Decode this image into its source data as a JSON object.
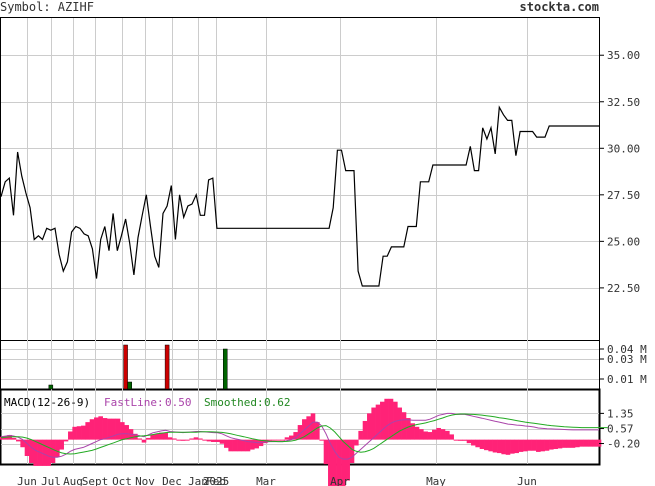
{
  "header": {
    "symbol_text": "Symbol: AZIHF",
    "brand": "stockta.com"
  },
  "chart_data": [
    {
      "type": "line",
      "name": "price",
      "ylim": [
        19.7,
        37.0
      ],
      "y_ticks": [
        "35.00",
        "32.50",
        "30.00",
        "27.50",
        "25.00",
        "22.50"
      ],
      "y_tick_values": [
        35.0,
        32.5,
        30.0,
        27.5,
        25.0,
        22.5
      ],
      "x_labels": [
        "Jun",
        "Jul",
        "Aug",
        "Sept",
        "Oct",
        "Nov",
        "Dec",
        "Jan",
        "Feb",
        "2025",
        "Mar",
        "Apr",
        "May",
        "Jun"
      ],
      "values": [
        27.4,
        28.2,
        28.4,
        26.4,
        29.8,
        28.5,
        27.6,
        26.8,
        25.1,
        25.3,
        25.1,
        25.7,
        25.6,
        25.7,
        24.3,
        23.4,
        23.9,
        25.5,
        25.8,
        25.7,
        25.4,
        25.3,
        24.6,
        23.0,
        25.1,
        25.8,
        24.5,
        26.5,
        24.5,
        25.3,
        26.2,
        24.9,
        23.2,
        25.2,
        26.4,
        27.5,
        25.8,
        24.2,
        23.6,
        26.5,
        26.9,
        28.0,
        25.1,
        27.5,
        26.3,
        26.9,
        27.0,
        27.5,
        26.4,
        26.4,
        28.3,
        28.4,
        25.7,
        25.7,
        25.7,
        25.7,
        25.7,
        25.7,
        25.7,
        25.7,
        25.7,
        25.7,
        25.7,
        25.7,
        25.7,
        25.7,
        25.7,
        25.7,
        25.7,
        25.7,
        25.7,
        25.7,
        25.7,
        25.7,
        25.7,
        25.7,
        25.7,
        25.7,
        25.7,
        25.7,
        26.8,
        29.9,
        29.9,
        28.8,
        28.8,
        28.8,
        23.4,
        22.6,
        22.6,
        22.6,
        22.6,
        22.6,
        24.2,
        24.2,
        24.7,
        24.7,
        24.7,
        24.7,
        25.8,
        25.8,
        25.8,
        28.2,
        28.2,
        28.2,
        29.1,
        29.1,
        29.1,
        29.1,
        29.1,
        29.1,
        29.1,
        29.1,
        29.1,
        30.1,
        28.8,
        28.8,
        31.1,
        30.5,
        31.1,
        29.7,
        32.2,
        31.8,
        31.5,
        31.5,
        29.6,
        30.9,
        30.9,
        30.9,
        30.9,
        30.6,
        30.6,
        30.6,
        31.2,
        31.2,
        31.2,
        31.2,
        31.2,
        31.2,
        31.2,
        31.2,
        31.2,
        31.2,
        31.2,
        31.2,
        31.2
      ],
      "line_color": "#000000"
    },
    {
      "type": "bar",
      "name": "volume",
      "y_ticks": [
        "0.04 M",
        "0.03 M",
        "0.01 M"
      ],
      "y_tick_values": [
        0.04,
        0.03,
        0.01
      ],
      "ylim": [
        0,
        0.048
      ],
      "bars": [
        {
          "index": 12,
          "value": 0.004,
          "color": "#006400"
        },
        {
          "index": 30,
          "value": 0.044,
          "color": "#cc0000"
        },
        {
          "index": 31,
          "value": 0.007,
          "color": "#006400"
        },
        {
          "index": 40,
          "value": 0.044,
          "color": "#cc0000"
        },
        {
          "index": 54,
          "value": 0.04,
          "color": "#006400"
        }
      ]
    },
    {
      "type": "line",
      "name": "macd",
      "label": "MACD(12-26-9)",
      "fastline_label": "FastLine:",
      "fastline_value": "0.50",
      "smoothed_label": "Smoothed:",
      "smoothed_value": "0.62",
      "y_ticks": [
        "1.35",
        "0.57",
        "-0.20"
      ],
      "y_tick_values": [
        1.35,
        0.57,
        -0.2
      ],
      "ylim": [
        -1.2,
        2.5
      ],
      "colors": {
        "fast": "#aa44aa",
        "smooth": "#22aa22",
        "histogram": "#ff2277",
        "fast_text": "#aa44aa",
        "smooth_text": "#228822"
      },
      "fast": [
        0.15,
        0.18,
        0.22,
        0.18,
        0.12,
        0.0,
        -0.2,
        -0.4,
        -0.55,
        -0.65,
        -0.75,
        -0.85,
        -0.9,
        -0.9,
        -0.85,
        -0.75,
        -0.6,
        -0.5,
        -0.45,
        -0.4,
        -0.3,
        -0.2,
        -0.1,
        0.0,
        0.05,
        0.12,
        0.2,
        0.28,
        0.3,
        0.3,
        0.28,
        0.25,
        0.2,
        0.15,
        0.25,
        0.35,
        0.4,
        0.45,
        0.48,
        0.42,
        0.4,
        0.38,
        0.36,
        0.38,
        0.4,
        0.42,
        0.42,
        0.4,
        0.38,
        0.36,
        0.35,
        0.3,
        0.2,
        0.1,
        0.05,
        0.0,
        -0.05,
        -0.1,
        -0.12,
        -0.15,
        -0.15,
        -0.12,
        -0.1,
        -0.1,
        -0.1,
        -0.1,
        -0.05,
        0.0,
        0.1,
        0.3,
        0.5,
        0.7,
        0.9,
        0.9,
        0.7,
        0.3,
        -0.2,
        -0.6,
        -0.9,
        -1.0,
        -1.0,
        -0.9,
        -0.7,
        -0.5,
        -0.3,
        -0.1,
        0.1,
        0.3,
        0.5,
        0.7,
        0.85,
        0.95,
        1.0,
        1.02,
        1.02,
        1.0,
        1.0,
        1.0,
        1.0,
        1.05,
        1.15,
        1.25,
        1.3,
        1.35,
        1.35,
        1.3,
        1.3,
        1.3,
        1.25,
        1.2,
        1.15,
        1.1,
        1.05,
        1.0,
        0.95,
        0.9,
        0.85,
        0.8,
        0.78,
        0.75,
        0.73,
        0.7,
        0.68,
        0.65,
        0.6,
        0.58,
        0.56,
        0.55,
        0.54,
        0.53,
        0.52,
        0.51,
        0.5,
        0.5,
        0.5,
        0.5,
        0.5,
        0.5,
        0.5
      ],
      "smooth": [
        0.1,
        0.12,
        0.14,
        0.15,
        0.15,
        0.13,
        0.08,
        0.0,
        -0.1,
        -0.2,
        -0.3,
        -0.4,
        -0.5,
        -0.6,
        -0.68,
        -0.72,
        -0.74,
        -0.72,
        -0.68,
        -0.64,
        -0.6,
        -0.55,
        -0.48,
        -0.4,
        -0.32,
        -0.24,
        -0.16,
        -0.08,
        0.0,
        0.05,
        0.1,
        0.15,
        0.18,
        0.2,
        0.22,
        0.26,
        0.3,
        0.33,
        0.36,
        0.38,
        0.38,
        0.38,
        0.38,
        0.38,
        0.38,
        0.38,
        0.4,
        0.41,
        0.41,
        0.4,
        0.39,
        0.37,
        0.34,
        0.3,
        0.25,
        0.2,
        0.15,
        0.1,
        0.05,
        0.0,
        -0.04,
        -0.06,
        -0.08,
        -0.09,
        -0.1,
        -0.1,
        -0.09,
        -0.07,
        -0.03,
        0.05,
        0.15,
        0.3,
        0.45,
        0.6,
        0.7,
        0.72,
        0.6,
        0.4,
        0.15,
        -0.1,
        -0.3,
        -0.5,
        -0.6,
        -0.65,
        -0.62,
        -0.55,
        -0.45,
        -0.3,
        -0.15,
        0.0,
        0.15,
        0.3,
        0.45,
        0.55,
        0.65,
        0.72,
        0.78,
        0.82,
        0.86,
        0.92,
        0.98,
        1.05,
        1.12,
        1.2,
        1.26,
        1.3,
        1.32,
        1.32,
        1.31,
        1.3,
        1.28,
        1.26,
        1.23,
        1.2,
        1.17,
        1.13,
        1.1,
        1.06,
        1.02,
        0.98,
        0.94,
        0.9,
        0.87,
        0.84,
        0.81,
        0.78,
        0.75,
        0.72,
        0.7,
        0.68,
        0.66,
        0.65,
        0.64,
        0.63,
        0.62,
        0.62,
        0.62,
        0.62,
        0.62,
        0.62,
        0.62
      ]
    }
  ]
}
